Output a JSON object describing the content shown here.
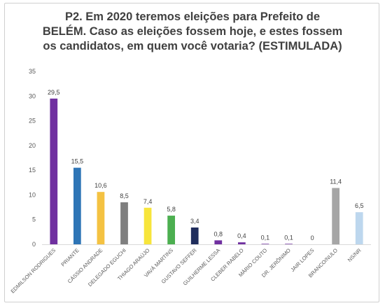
{
  "chart_data": {
    "type": "bar",
    "title_lines": [
      "P2. Em 2020 teremos eleições para Prefeito de",
      "BELÉM. Caso as eleições fossem hoje, e estes fossem",
      "os candidatos, em quem você votaria? (ESTIMULADA)"
    ],
    "categories": [
      "EDMILSON RODRIGUES",
      "PRIANTE",
      "CÁSSIO ANDRADE",
      "DELEGADO EGUCHI",
      "THIAGO ARAÚJO",
      "VAVÁ MARTINS",
      "GUSTAVO SEFFER",
      "GUILHERME LESSA",
      "CLEBER RABELO",
      "MÁRIO COUTO",
      "DR. JERÔNIMO",
      "JAIR LOPES",
      "BRANCO/NULO",
      "NS/NR"
    ],
    "values": [
      29.5,
      15.5,
      10.6,
      8.5,
      7.4,
      5.8,
      3.4,
      0.8,
      0.4,
      0.1,
      0.1,
      0,
      11.4,
      6.5
    ],
    "value_labels": [
      "29,5",
      "15,5",
      "10,6",
      "8,5",
      "7,4",
      "5,8",
      "3,4",
      "0,8",
      "0,4",
      "0,1",
      "0,1",
      "0",
      "11,4",
      "6,5"
    ],
    "colors": [
      "#7030a0",
      "#2e75b6",
      "#f4c242",
      "#7f7f7f",
      "#f7e53b",
      "#4caf50",
      "#1f2d5c",
      "#7030a0",
      "#7030a0",
      "#7030a0",
      "#7030a0",
      "#7030a0",
      "#a6a6a6",
      "#bdd7ee"
    ],
    "yticks": [
      "0",
      "5",
      "10",
      "15",
      "20",
      "25",
      "30",
      "35"
    ],
    "ylim": [
      0,
      35
    ],
    "xlabel": "",
    "ylabel": "",
    "grid": false,
    "legend": "none"
  }
}
